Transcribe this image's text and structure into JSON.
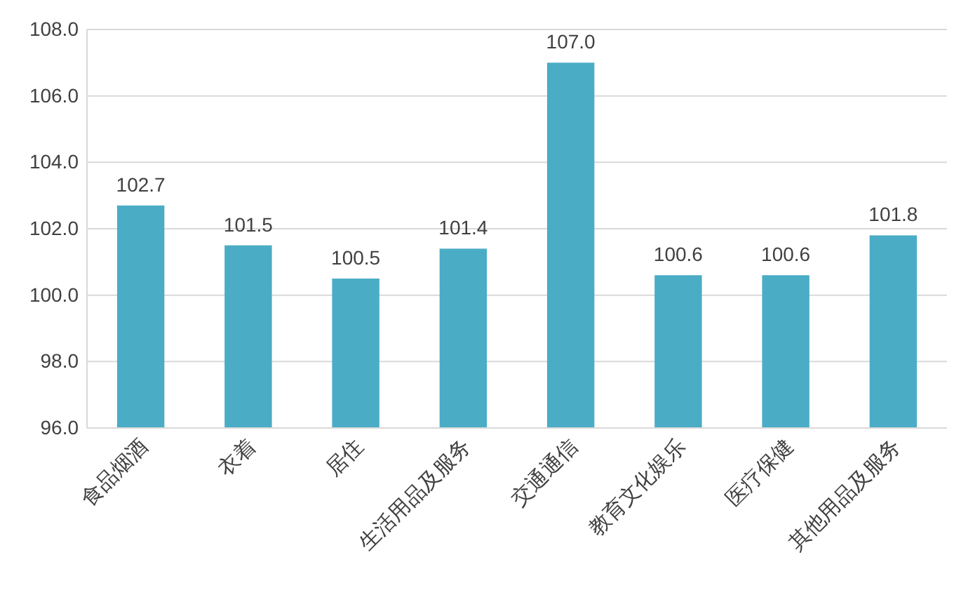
{
  "chart_data": {
    "type": "bar",
    "categories": [
      "食品烟酒",
      "衣着",
      "居住",
      "生活用品及服务",
      "交通通信",
      "教育文化娱乐",
      "医疗保健",
      "其他用品及服务"
    ],
    "values": [
      102.7,
      101.5,
      100.5,
      101.4,
      107.0,
      100.6,
      100.6,
      101.8
    ],
    "value_labels": [
      "102.7",
      "101.5",
      "100.5",
      "101.4",
      "107.0",
      "100.6",
      "100.6",
      "101.8"
    ],
    "color": "#4bacc6",
    "ylim": [
      96,
      108
    ],
    "yticks": [
      {
        "value": 96,
        "label": "96.0"
      },
      {
        "value": 98,
        "label": "98.0"
      },
      {
        "value": 100,
        "label": "100.0"
      },
      {
        "value": 102,
        "label": "102.0"
      },
      {
        "value": 104,
        "label": "104.0"
      },
      {
        "value": 106,
        "label": "106.0"
      },
      {
        "value": 108,
        "label": "108.0"
      }
    ],
    "grid": "y"
  }
}
